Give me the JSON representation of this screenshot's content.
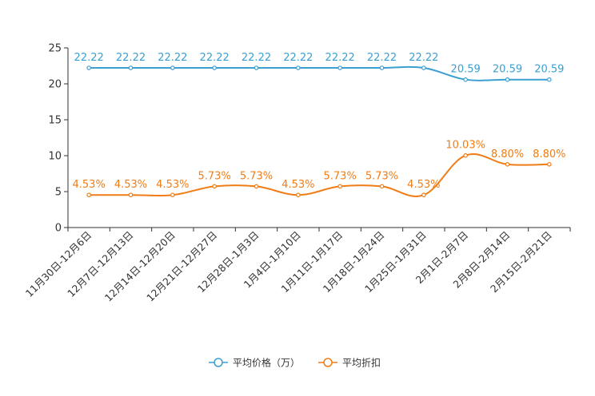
{
  "chart_data": {
    "type": "line",
    "title": "",
    "xlabel": "",
    "ylabel": "",
    "categories": [
      "11月30日-12月6日",
      "12月7日-12月13日",
      "12月14日-12月20日",
      "12月21日-12月27日",
      "12月28日-1月3日",
      "1月4日-1月10日",
      "1月11日-1月17日",
      "1月18日-1月24日",
      "1月25日-1月31日",
      "2月1日-2月7日",
      "2月8日-2月14日",
      "2月15日-2月21日"
    ],
    "ylim": [
      0,
      25
    ],
    "yticks": [
      "0",
      "5",
      "10",
      "15",
      "20",
      "25"
    ],
    "grid": false,
    "legend_position": "bottom-center",
    "series": [
      {
        "name": "平均价格（万）",
        "color": "#3b9fd1",
        "values": [
          22.22,
          22.22,
          22.22,
          22.22,
          22.22,
          22.22,
          22.22,
          22.22,
          22.22,
          20.59,
          20.59,
          20.59
        ],
        "labels": [
          "22.22",
          "22.22",
          "22.22",
          "22.22",
          "22.22",
          "22.22",
          "22.22",
          "22.22",
          "22.22",
          "20.59",
          "20.59",
          "20.59"
        ]
      },
      {
        "name": "平均折扣",
        "color": "#f07c16",
        "values": [
          4.53,
          4.53,
          4.53,
          5.73,
          5.73,
          4.53,
          5.73,
          5.73,
          4.53,
          10.03,
          8.8,
          8.8
        ],
        "labels": [
          "4.53%",
          "4.53%",
          "4.53%",
          "5.73%",
          "5.73%",
          "4.53%",
          "5.73%",
          "5.73%",
          "4.53%",
          "10.03%",
          "8.80%",
          "8.80%"
        ]
      }
    ]
  }
}
